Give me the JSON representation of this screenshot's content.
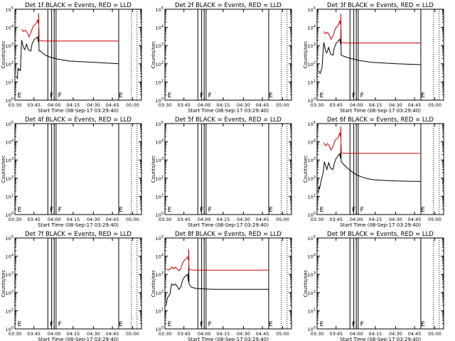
{
  "figure": {
    "background": "#ffffff",
    "axis_color": "#000000"
  },
  "common": {
    "ylabel": "Counts/sec",
    "xlabel": "Start Time (08-Sep-17 03:29:40)",
    "xticks": [
      "03:30",
      "03:45",
      "04:00",
      "04:15",
      "04:30",
      "04:45",
      "05:00"
    ]
  },
  "chart_data": [
    {
      "type": "line",
      "title": "Det 1f BLACK = Events, RED = LLD",
      "ylim": [
        1,
        100000
      ],
      "scale": "log",
      "ylabel": "Counts/sec",
      "xlabel": "Start Time (08-Sep-17 03:29:40)",
      "marker_labels": [
        "E",
        "F",
        "F",
        "E"
      ],
      "series": [
        {
          "name": "BLACK = Events",
          "color": "#000000",
          "points": [
            [
              0.03,
              20
            ],
            [
              0.04,
              15
            ],
            [
              0.045,
              35
            ],
            [
              0.05,
              55
            ],
            [
              0.07,
              45
            ],
            [
              0.085,
              50
            ],
            [
              0.09,
              40
            ],
            [
              0.11,
              2000
            ],
            [
              0.14,
              800
            ],
            [
              0.16,
              600
            ],
            [
              0.19,
              1200
            ],
            [
              0.22,
              600
            ],
            [
              0.26,
              500
            ],
            [
              0.28,
              1200
            ],
            [
              0.31,
              2000
            ],
            [
              0.34,
              2500
            ],
            [
              0.37,
              3000
            ],
            [
              0.385,
              1500
            ],
            [
              0.39,
              9000
            ],
            [
              0.395,
              500
            ],
            [
              0.42,
              500
            ],
            [
              0.45,
              400
            ],
            [
              0.5,
              300
            ],
            [
              0.55,
              250
            ],
            [
              0.6,
              220
            ],
            [
              0.65,
              200
            ],
            [
              0.7,
              180
            ],
            [
              0.75,
              170
            ],
            [
              0.8,
              160
            ],
            [
              0.85,
              150
            ],
            [
              0.9,
              140
            ],
            [
              0.95,
              140
            ],
            [
              1.0,
              135
            ],
            [
              1.1,
              130
            ],
            [
              1.2,
              125
            ],
            [
              1.3,
              120
            ],
            [
              1.5,
              110
            ],
            [
              1.6,
              105
            ],
            [
              1.7,
              100
            ]
          ]
        },
        {
          "name": "RED = LLD",
          "color": "#cc0000",
          "points": [
            [
              0.11,
              8000
            ],
            [
              0.14,
              6000
            ],
            [
              0.17,
              7000
            ],
            [
              0.2,
              5500
            ],
            [
              0.23,
              3000
            ],
            [
              0.26,
              5000
            ],
            [
              0.3,
              12000
            ],
            [
              0.34,
              15000
            ],
            [
              0.37,
              25000
            ],
            [
              0.385,
              16000
            ],
            [
              0.39,
              60000
            ],
            [
              0.395,
              2000
            ],
            [
              0.45,
              1800
            ],
            [
              0.6,
              1800
            ],
            [
              0.8,
              1800
            ],
            [
              1.0,
              1800
            ],
            [
              1.3,
              1800
            ],
            [
              1.7,
              1800
            ]
          ]
        }
      ]
    },
    {
      "type": "line",
      "title": "Det 2f BLACK = Events, RED = LLD",
      "ylim": [
        1,
        100000
      ],
      "scale": "log",
      "ylabel": "Counts/sec",
      "xlabel": "Start Time (08-Sep-17 03:29:40)",
      "marker_labels": [
        "E",
        "F",
        "F",
        "E"
      ],
      "series": []
    },
    {
      "type": "line",
      "title": "Det 3f BLACK = Events, RED = LLD",
      "ylim": [
        1,
        100000
      ],
      "scale": "log",
      "ylabel": "Counts/sec",
      "xlabel": "Start Time (08-Sep-17 03:29:40)",
      "marker_labels": [
        "E",
        "F",
        "F",
        "E"
      ],
      "series": [
        {
          "name": "BLACK = Events",
          "color": "#000000",
          "points": [
            [
              0.03,
              40
            ],
            [
              0.05,
              30
            ],
            [
              0.08,
              60
            ],
            [
              0.11,
              1500
            ],
            [
              0.14,
              500
            ],
            [
              0.16,
              400
            ],
            [
              0.19,
              800
            ],
            [
              0.22,
              350
            ],
            [
              0.26,
              300
            ],
            [
              0.28,
              700
            ],
            [
              0.31,
              1300
            ],
            [
              0.34,
              1700
            ],
            [
              0.37,
              2200
            ],
            [
              0.385,
              1200
            ],
            [
              0.39,
              8000
            ],
            [
              0.395,
              300
            ],
            [
              0.45,
              250
            ],
            [
              0.55,
              200
            ],
            [
              0.7,
              150
            ],
            [
              0.9,
              120
            ],
            [
              1.1,
              110
            ],
            [
              1.3,
              100
            ],
            [
              1.5,
              95
            ],
            [
              1.7,
              90
            ]
          ]
        },
        {
          "name": "RED = LLD",
          "color": "#cc0000",
          "points": [
            [
              0.11,
              6000
            ],
            [
              0.14,
              4500
            ],
            [
              0.17,
              5500
            ],
            [
              0.2,
              4000
            ],
            [
              0.23,
              2200
            ],
            [
              0.26,
              3500
            ],
            [
              0.3,
              9000
            ],
            [
              0.34,
              12000
            ],
            [
              0.37,
              22000
            ],
            [
              0.385,
              14000
            ],
            [
              0.39,
              55000
            ],
            [
              0.395,
              1500
            ],
            [
              0.5,
              1400
            ],
            [
              0.8,
              1400
            ],
            [
              1.2,
              1400
            ],
            [
              1.7,
              1400
            ]
          ]
        }
      ]
    },
    {
      "type": "line",
      "title": "Det 4f BLACK = Events, RED = LLD",
      "ylim": [
        1,
        100000
      ],
      "scale": "log",
      "ylabel": "Counts/sec",
      "xlabel": "Start Time (08-Sep-17 03:29:40)",
      "marker_labels": [
        "E",
        "F",
        "F",
        "E"
      ],
      "series": []
    },
    {
      "type": "line",
      "title": "Det 5f BLACK = Events, RED = LLD",
      "ylim": [
        1,
        100000
      ],
      "scale": "log",
      "ylabel": "Counts/sec",
      "xlabel": "Start Time (08-Sep-17 03:29:40)",
      "marker_labels": [
        "E",
        "F",
        "F",
        "E"
      ],
      "series": []
    },
    {
      "type": "line",
      "title": "Det 6f BLACK = Events, RED = LLD",
      "ylim": [
        1,
        100000
      ],
      "scale": "log",
      "ylabel": "Counts/sec",
      "xlabel": "Start Time (08-Sep-17 03:29:40)",
      "marker_labels": [
        "E",
        "F",
        "F",
        "E"
      ],
      "series": [
        {
          "name": "BLACK = Events",
          "color": "#000000",
          "points": [
            [
              0.02,
              15
            ],
            [
              0.03,
              35
            ],
            [
              0.04,
              25
            ],
            [
              0.06,
              60
            ],
            [
              0.1,
              200
            ],
            [
              0.12,
              800
            ],
            [
              0.14,
              500
            ],
            [
              0.16,
              300
            ],
            [
              0.19,
              700
            ],
            [
              0.22,
              350
            ],
            [
              0.26,
              300
            ],
            [
              0.28,
              600
            ],
            [
              0.31,
              1200
            ],
            [
              0.34,
              1600
            ],
            [
              0.37,
              2200
            ],
            [
              0.385,
              1200
            ],
            [
              0.39,
              7000
            ],
            [
              0.395,
              800
            ],
            [
              0.43,
              600
            ],
            [
              0.48,
              400
            ],
            [
              0.55,
              250
            ],
            [
              0.65,
              150
            ],
            [
              0.75,
              110
            ],
            [
              0.85,
              90
            ],
            [
              0.95,
              80
            ],
            [
              1.1,
              75
            ],
            [
              1.3,
              70
            ],
            [
              1.5,
              68
            ],
            [
              1.7,
              66
            ]
          ]
        },
        {
          "name": "RED = LLD",
          "color": "#cc0000",
          "points": [
            [
              0.11,
              9000
            ],
            [
              0.14,
              6000
            ],
            [
              0.17,
              8000
            ],
            [
              0.2,
              6000
            ],
            [
              0.23,
              3500
            ],
            [
              0.26,
              5500
            ],
            [
              0.3,
              13000
            ],
            [
              0.34,
              16000
            ],
            [
              0.37,
              30000
            ],
            [
              0.385,
              18000
            ],
            [
              0.39,
              70000
            ],
            [
              0.395,
              2500
            ],
            [
              0.45,
              2300
            ],
            [
              0.6,
              2300
            ],
            [
              0.9,
              2300
            ],
            [
              1.3,
              2300
            ],
            [
              1.7,
              2300
            ]
          ]
        }
      ]
    },
    {
      "type": "line",
      "title": "Det 7f BLACK = Events, RED = LLD",
      "ylim": [
        1,
        100000
      ],
      "scale": "log",
      "ylabel": "Counts/sec",
      "xlabel": "Start Time (08-Sep-17 03:29:40)",
      "marker_labels": [
        "E",
        "F",
        "F",
        "E"
      ],
      "series": []
    },
    {
      "type": "line",
      "title": "Det 8f BLACK = Events, RED = LLD",
      "ylim": [
        1,
        100000
      ],
      "scale": "log",
      "ylabel": "Counts/sec",
      "xlabel": "Start Time (08-Sep-17 03:29:40)",
      "marker_labels": [
        "E",
        "F",
        "F",
        "E"
      ],
      "series": [
        {
          "name": "BLACK = Events",
          "color": "#000000",
          "points": [
            [
              0.02,
              20
            ],
            [
              0.04,
              50
            ],
            [
              0.08,
              80
            ],
            [
              0.11,
              300
            ],
            [
              0.14,
              250
            ],
            [
              0.17,
              300
            ],
            [
              0.2,
              220
            ],
            [
              0.23,
              150
            ],
            [
              0.26,
              200
            ],
            [
              0.29,
              500
            ],
            [
              0.32,
              700
            ],
            [
              0.35,
              900
            ],
            [
              0.37,
              1000
            ],
            [
              0.385,
              400
            ],
            [
              0.39,
              3000
            ],
            [
              0.395,
              300
            ],
            [
              0.43,
              200
            ],
            [
              0.5,
              170
            ],
            [
              0.6,
              160
            ],
            [
              0.8,
              150
            ],
            [
              1.0,
              150
            ],
            [
              1.3,
              150
            ],
            [
              1.7,
              150
            ]
          ]
        },
        {
          "name": "RED = LLD",
          "color": "#cc0000",
          "points": [
            [
              0.03,
              1800
            ],
            [
              0.07,
              1800
            ],
            [
              0.11,
              2500
            ],
            [
              0.14,
              2000
            ],
            [
              0.17,
              2500
            ],
            [
              0.2,
              2000
            ],
            [
              0.23,
              1600
            ],
            [
              0.26,
              2000
            ],
            [
              0.29,
              4500
            ],
            [
              0.32,
              6000
            ],
            [
              0.35,
              7500
            ],
            [
              0.37,
              9000
            ],
            [
              0.385,
              6000
            ],
            [
              0.39,
              25000
            ],
            [
              0.395,
              1800
            ],
            [
              0.5,
              1700
            ],
            [
              0.8,
              1700
            ],
            [
              1.2,
              1700
            ],
            [
              1.7,
              1700
            ]
          ]
        }
      ]
    },
    {
      "type": "line",
      "title": "Det 9f BLACK = Events, RED = LLD",
      "ylim": [
        1,
        100000
      ],
      "scale": "log",
      "ylabel": "Counts/sec",
      "xlabel": "Start Time (08-Sep-17 03:29:40)",
      "marker_labels": [
        "E",
        "F",
        "F",
        "E"
      ],
      "series": []
    }
  ]
}
